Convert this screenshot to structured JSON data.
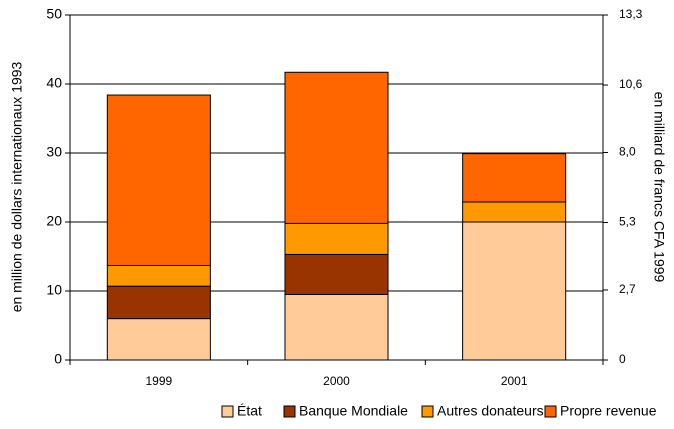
{
  "chart_data": {
    "type": "bar",
    "stacked": true,
    "categories": [
      "1999",
      "2000",
      "2001"
    ],
    "series": [
      {
        "name": "État",
        "color": "#FFCC99",
        "values": [
          6.0,
          9.5,
          20.0
        ]
      },
      {
        "name": "Banque Mondiale",
        "color": "#993300",
        "values": [
          4.7,
          5.8,
          0
        ]
      },
      {
        "name": "Autres donateurs",
        "color": "#FF9900",
        "values": [
          3.0,
          4.5,
          2.9
        ]
      },
      {
        "name": "Propre revenue",
        "color": "#FF6600",
        "values": [
          24.7,
          21.9,
          7.0
        ]
      }
    ],
    "ylabel": "en million de dollars internationaux 1993",
    "y2label": "en milliard de francs CFA 1999",
    "ylim": [
      0,
      50
    ],
    "yticks": [
      0,
      10,
      20,
      30,
      40,
      50
    ],
    "y2lim": [
      0,
      13.3
    ],
    "y2ticks": [
      0,
      {
        "value": 2.7,
        "label": "2,7"
      },
      {
        "value": 5.3,
        "label": "5,3"
      },
      {
        "value": 8.0,
        "label": "8,0"
      },
      {
        "value": 10.6,
        "label": "10,6"
      },
      {
        "value": 13.3,
        "label": "13,3"
      }
    ],
    "grid": true,
    "legend": "bottom"
  }
}
